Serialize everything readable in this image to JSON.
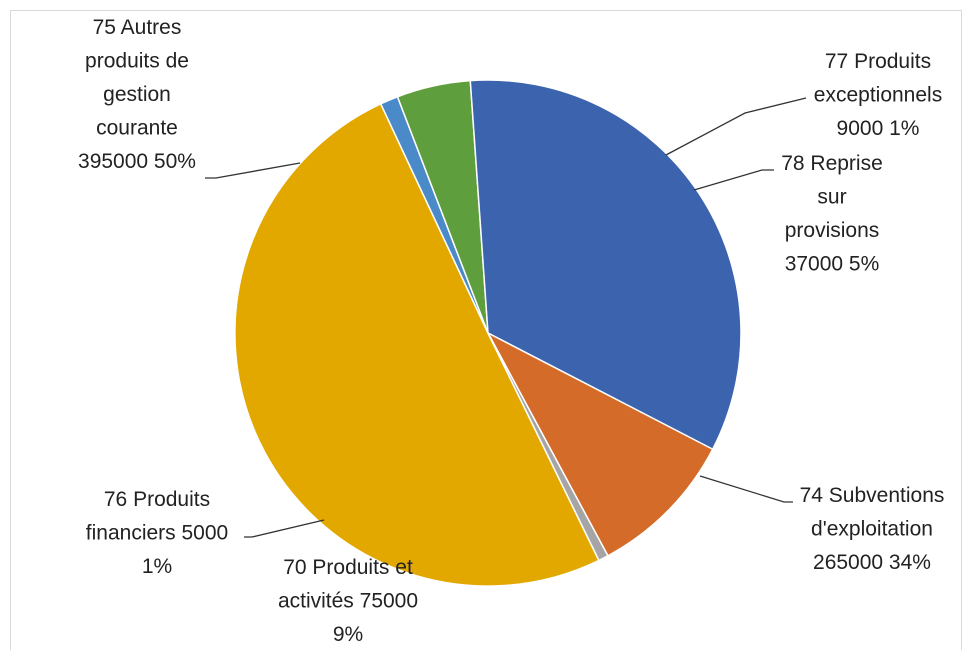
{
  "chart_data": {
    "type": "pie",
    "title": "",
    "slices": [
      {
        "name": "75 Autres produits de gestion courante",
        "value": 395000,
        "percent": "50%",
        "color": "#E2A800",
        "label_lines": [
          "75 Autres",
          "produits de",
          "gestion",
          "courante",
          "395000 50%"
        ]
      },
      {
        "name": "77 Produits exceptionnels",
        "value": 9000,
        "percent": "1%",
        "color": "#4A8AC8",
        "label_lines": [
          "77 Produits",
          "exceptionnels",
          "9000 1%"
        ]
      },
      {
        "name": "78 Reprise sur provisions",
        "value": 37000,
        "percent": "5%",
        "color": "#5E9E3C",
        "label_lines": [
          "78 Reprise",
          "sur",
          "provisions",
          "37000 5%"
        ]
      },
      {
        "name": "74 Subventions d'exploitation",
        "value": 265000,
        "percent": "34%",
        "color": "#3C63AE",
        "label_lines": [
          "74 Subventions",
          "d'exploitation",
          "265000 34%"
        ]
      },
      {
        "name": "70 Produits et activités",
        "value": 75000,
        "percent": "9%",
        "color": "#D56B28",
        "label_lines": [
          "70 Produits et",
          "activités 75000",
          "9%"
        ]
      },
      {
        "name": "76 Produits financiers",
        "value": 5000,
        "percent": "1%",
        "color": "#A5A5A5",
        "label_lines": [
          "76 Produits",
          "financiers 5000",
          "1%"
        ]
      }
    ]
  }
}
